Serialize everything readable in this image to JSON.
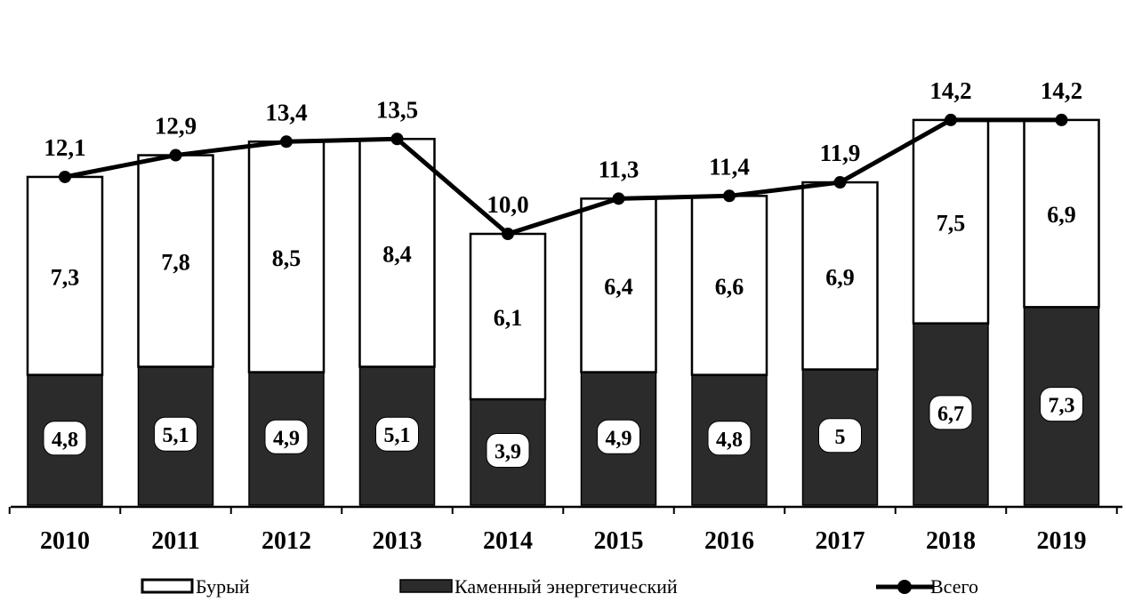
{
  "chart_data": {
    "type": "bar",
    "stacked": true,
    "categories": [
      "2010",
      "2011",
      "2012",
      "2013",
      "2014",
      "2015",
      "2016",
      "2017",
      "2018",
      "2019"
    ],
    "series": [
      {
        "name": "Каменный энергетический",
        "kind": "bar",
        "color": "#2b2b2b",
        "values": [
          4.8,
          5.1,
          4.9,
          5.1,
          3.9,
          4.9,
          4.8,
          5,
          6.7,
          7.3
        ],
        "labels": [
          "4,8",
          "5,1",
          "4,9",
          "5,1",
          "3,9",
          "4,9",
          "4,8",
          "5",
          "6,7",
          "7,3"
        ]
      },
      {
        "name": "Бурый",
        "kind": "bar",
        "color": "#ffffff",
        "values": [
          7.3,
          7.8,
          8.5,
          8.4,
          6.1,
          6.4,
          6.6,
          6.9,
          7.5,
          6.9
        ],
        "labels": [
          "7,3",
          "7,8",
          "8,5",
          "8,4",
          "6,1",
          "6,4",
          "6,6",
          "6,9",
          "7,5",
          "6,9"
        ]
      },
      {
        "name": "Всего",
        "kind": "line",
        "color": "#000000",
        "values": [
          12.1,
          12.9,
          13.4,
          13.5,
          10.0,
          11.3,
          11.4,
          11.9,
          14.2,
          14.2
        ],
        "labels": [
          "12,1",
          "12,9",
          "13,4",
          "13,5",
          "10,0",
          "11,3",
          "11,4",
          "11,9",
          "14,2",
          "14,2"
        ]
      }
    ],
    "legend_position": "bottom",
    "grid": false
  }
}
